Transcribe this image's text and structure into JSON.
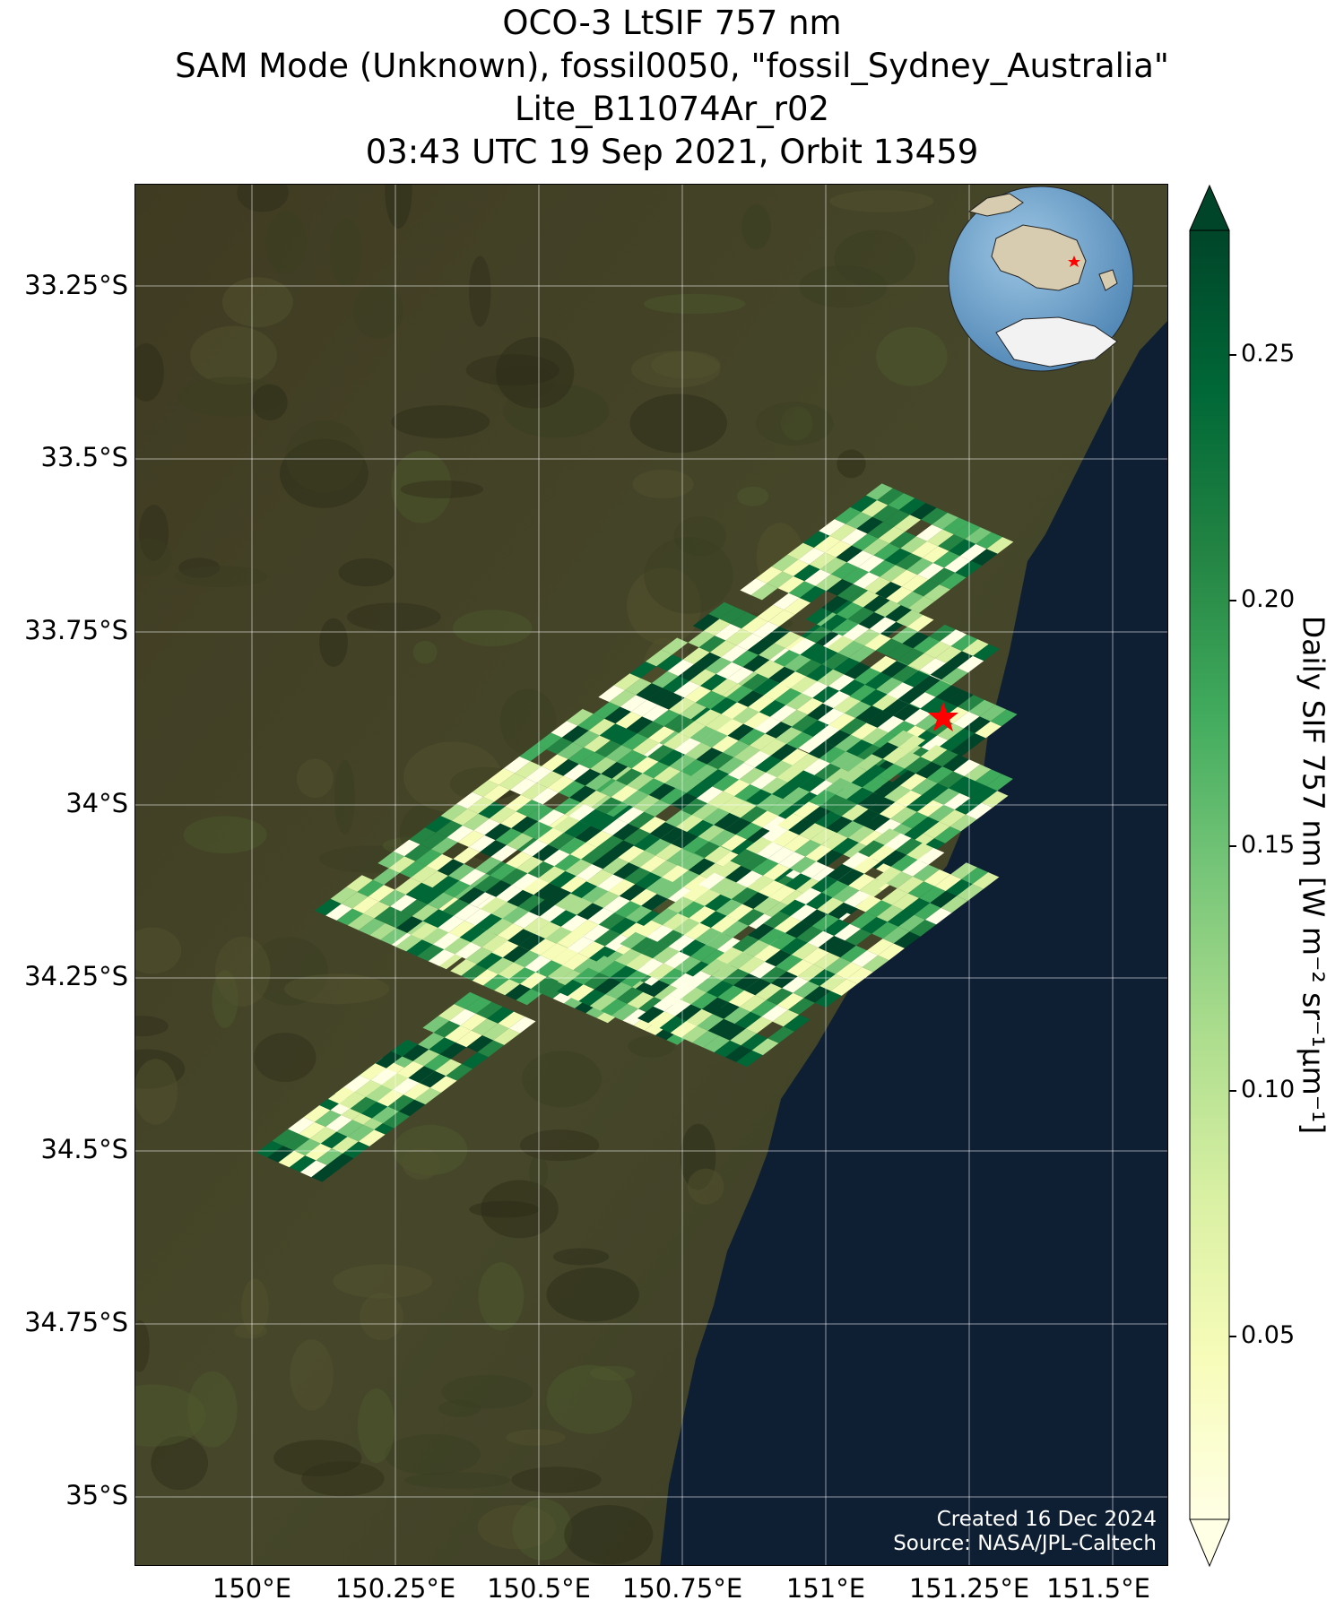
{
  "title_lines": [
    "OCO-3 LtSIF 757 nm",
    "SAM Mode (Unknown), fossil0050, \"fossil_Sydney_Australia\"",
    "Lite_B11074Ar_r02",
    "03:43 UTC 19 Sep 2021, Orbit 13459"
  ],
  "axes": {
    "lat_ticks": [
      "33.25°S",
      "33.5°S",
      "33.75°S",
      "34°S",
      "34.25°S",
      "34.5°S",
      "34.75°S",
      "35°S"
    ],
    "lat_values": [
      -33.25,
      -33.5,
      -33.75,
      -34.0,
      -34.25,
      -34.5,
      -34.75,
      -35.0
    ],
    "lon_ticks": [
      "150°E",
      "150.25°E",
      "150.5°E",
      "150.75°E",
      "151°E",
      "151.25°E",
      "151.5°E"
    ],
    "lon_values": [
      150.0,
      150.25,
      150.5,
      150.75,
      151.0,
      151.25,
      151.5
    ],
    "lon_range": [
      149.9,
      151.8
    ],
    "lat_range": [
      -35.1,
      -33.1
    ],
    "grid": true
  },
  "colorbar": {
    "label": "Daily SIF 757 nm [W m⁻² sr⁻¹μm⁻¹]",
    "ticks": [
      "0.05",
      "0.10",
      "0.15",
      "0.20",
      "0.25"
    ],
    "tick_values": [
      0.05,
      0.1,
      0.15,
      0.2,
      0.25
    ],
    "range": [
      0.01,
      0.27
    ],
    "extend": "both",
    "colormap": [
      "#ffffe5",
      "#f7fcb9",
      "#d9f0a3",
      "#addd8e",
      "#78c679",
      "#41ab5d",
      "#238443",
      "#006837",
      "#004529"
    ]
  },
  "target_marker": {
    "name": "Sydney",
    "lon": 151.21,
    "lat": -33.87,
    "color": "#ff0000"
  },
  "credit": {
    "created": "Created 16 Dec 2024",
    "source": "Source: NASA/JPL-Caltech"
  },
  "colors": {
    "ocean": "#0f1f33",
    "land_dark": "#3b3a23",
    "land_green": "#4e5a2e",
    "globe_ocean": "#6fa6cf",
    "globe_land": "#d8ccb0"
  }
}
